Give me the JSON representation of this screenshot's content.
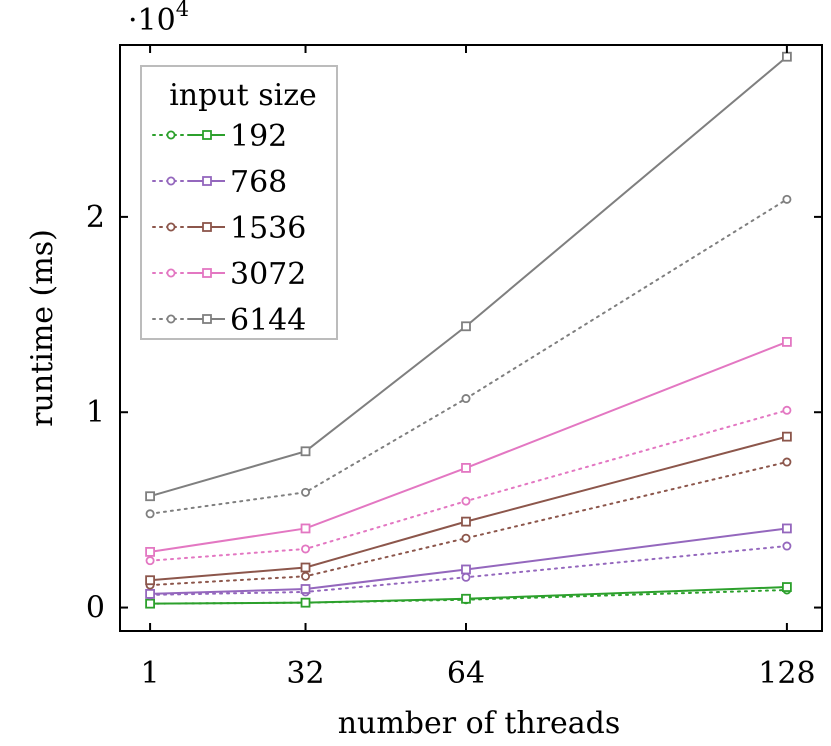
{
  "chart_data": {
    "type": "line",
    "xlabel": "number of threads",
    "ylabel": "runtime (ms)",
    "y_scale_label": "·10",
    "y_scale_exponent": "4",
    "x_ticks": [
      "1",
      "32",
      "64",
      "128"
    ],
    "x_tick_values": [
      1,
      32,
      64,
      128
    ],
    "y_ticks": [
      "0",
      "1",
      "2"
    ],
    "y_tick_values": [
      0,
      10000,
      20000
    ],
    "xlim": [
      -5,
      135
    ],
    "ylim": [
      -1200,
      28800
    ],
    "grid": false,
    "legend": {
      "title": "input size",
      "placement": "top-left"
    },
    "x": [
      1,
      32,
      64,
      128
    ],
    "series": [
      {
        "name": "192",
        "color": "#2ca02c",
        "dotted": [
          200,
          250,
          400,
          900
        ],
        "solid": [
          200,
          250,
          450,
          1050
        ]
      },
      {
        "name": "768",
        "color": "#9467bd",
        "dotted": [
          650,
          800,
          1550,
          3150
        ],
        "solid": [
          700,
          950,
          1950,
          4050
        ]
      },
      {
        "name": "1536",
        "color": "#8c564b",
        "dotted": [
          1150,
          1600,
          3550,
          7450
        ],
        "solid": [
          1400,
          2050,
          4400,
          8750
        ]
      },
      {
        "name": "3072",
        "color": "#e377c2",
        "dotted": [
          2400,
          3000,
          5450,
          10100
        ],
        "solid": [
          2850,
          4050,
          7150,
          13600
        ]
      },
      {
        "name": "6144",
        "color": "#7f7f7f",
        "dotted": [
          4800,
          5900,
          10700,
          20900
        ],
        "solid": [
          5700,
          8000,
          14400,
          28200
        ]
      }
    ]
  }
}
